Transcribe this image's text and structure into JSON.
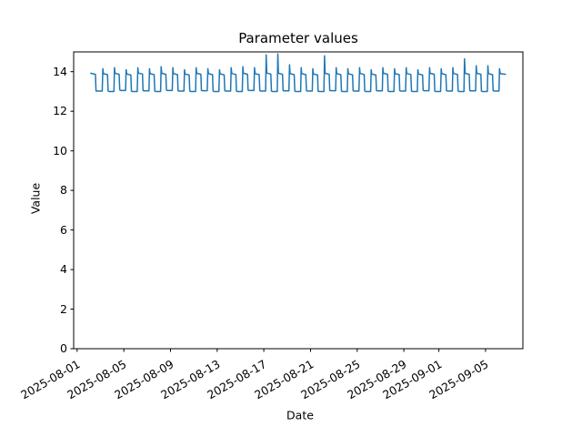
{
  "figure": {
    "background": "#ffffff",
    "text_color": "#000000"
  },
  "chart_data": {
    "type": "line",
    "title": "Parameter values",
    "xlabel": "Date",
    "ylabel": "Value",
    "ylim": [
      0,
      15
    ],
    "xlim_days": [
      -0.3,
      38.2
    ],
    "x_epoch": "2025-08-01",
    "grid": false,
    "legend": "none",
    "line_color": "#1f77b4",
    "line_width": 1.5,
    "y_ticks": [
      0,
      2,
      4,
      6,
      8,
      10,
      12,
      14
    ],
    "x_ticks": [
      {
        "label": "2025-08-01",
        "day": 0
      },
      {
        "label": "2025-08-05",
        "day": 4
      },
      {
        "label": "2025-08-09",
        "day": 8
      },
      {
        "label": "2025-08-13",
        "day": 12
      },
      {
        "label": "2025-08-17",
        "day": 16
      },
      {
        "label": "2025-08-21",
        "day": 20
      },
      {
        "label": "2025-08-25",
        "day": 24
      },
      {
        "label": "2025-08-29",
        "day": 28
      },
      {
        "label": "2025-09-01",
        "day": 31
      },
      {
        "label": "2025-09-05",
        "day": 35
      }
    ],
    "start_day": 1.17,
    "end_day": 36.7,
    "cycle": {
      "period_days": 1,
      "rise_frac": 0.2,
      "high_duration": 0.45,
      "low_duration": 0.55
    },
    "series": [
      {
        "name": "parameter",
        "description": "daily square wave: morning spike to peak, high plateau, drop to low plateau",
        "days": [
          {
            "date": "2025-08-02",
            "peak": 14.1,
            "high": 13.92,
            "low": 13.02
          },
          {
            "date": "2025-08-03",
            "peak": 14.15,
            "high": 13.9,
            "low": 13.0
          },
          {
            "date": "2025-08-04",
            "peak": 14.2,
            "high": 13.92,
            "low": 13.05
          },
          {
            "date": "2025-08-05",
            "peak": 14.1,
            "high": 13.88,
            "low": 13.0
          },
          {
            "date": "2025-08-06",
            "peak": 14.2,
            "high": 13.93,
            "low": 13.03
          },
          {
            "date": "2025-08-07",
            "peak": 14.15,
            "high": 13.9,
            "low": 13.0
          },
          {
            "date": "2025-08-08",
            "peak": 14.25,
            "high": 13.92,
            "low": 13.05
          },
          {
            "date": "2025-08-09",
            "peak": 14.2,
            "high": 13.9,
            "low": 13.02
          },
          {
            "date": "2025-08-10",
            "peak": 14.1,
            "high": 13.88,
            "low": 13.0
          },
          {
            "date": "2025-08-11",
            "peak": 14.2,
            "high": 13.92,
            "low": 13.04
          },
          {
            "date": "2025-08-12",
            "peak": 14.15,
            "high": 13.9,
            "low": 13.0
          },
          {
            "date": "2025-08-13",
            "peak": 14.1,
            "high": 13.89,
            "low": 13.02
          },
          {
            "date": "2025-08-14",
            "peak": 14.2,
            "high": 13.91,
            "low": 13.0
          },
          {
            "date": "2025-08-15",
            "peak": 14.25,
            "high": 13.92,
            "low": 13.05
          },
          {
            "date": "2025-08-16",
            "peak": 14.2,
            "high": 13.9,
            "low": 13.02
          },
          {
            "date": "2025-08-17",
            "peak": 14.85,
            "high": 13.93,
            "low": 13.0
          },
          {
            "date": "2025-08-18",
            "peak": 14.9,
            "high": 13.92,
            "low": 13.03
          },
          {
            "date": "2025-08-19",
            "peak": 14.35,
            "high": 13.9,
            "low": 13.0
          },
          {
            "date": "2025-08-20",
            "peak": 14.2,
            "high": 13.9,
            "low": 13.02
          },
          {
            "date": "2025-08-21",
            "peak": 14.15,
            "high": 13.88,
            "low": 13.0
          },
          {
            "date": "2025-08-22",
            "peak": 14.8,
            "high": 13.92,
            "low": 13.04
          },
          {
            "date": "2025-08-23",
            "peak": 14.2,
            "high": 13.9,
            "low": 13.0
          },
          {
            "date": "2025-08-24",
            "peak": 14.15,
            "high": 13.89,
            "low": 13.02
          },
          {
            "date": "2025-08-25",
            "peak": 14.2,
            "high": 13.91,
            "low": 13.0
          },
          {
            "date": "2025-08-26",
            "peak": 14.1,
            "high": 13.88,
            "low": 13.03
          },
          {
            "date": "2025-08-27",
            "peak": 14.2,
            "high": 13.92,
            "low": 13.0
          },
          {
            "date": "2025-08-28",
            "peak": 14.15,
            "high": 13.9,
            "low": 13.02
          },
          {
            "date": "2025-08-29",
            "peak": 14.2,
            "high": 13.91,
            "low": 13.0
          },
          {
            "date": "2025-08-30",
            "peak": 14.1,
            "high": 13.88,
            "low": 13.04
          },
          {
            "date": "2025-08-31",
            "peak": 14.2,
            "high": 13.92,
            "low": 13.0
          },
          {
            "date": "2025-09-01",
            "peak": 14.15,
            "high": 13.9,
            "low": 13.02
          },
          {
            "date": "2025-09-02",
            "peak": 14.2,
            "high": 13.91,
            "low": 13.0
          },
          {
            "date": "2025-09-03",
            "peak": 14.65,
            "high": 13.92,
            "low": 13.03
          },
          {
            "date": "2025-09-04",
            "peak": 14.3,
            "high": 13.92,
            "low": 13.0
          },
          {
            "date": "2025-09-05",
            "peak": 14.3,
            "high": 13.9,
            "low": 13.02
          },
          {
            "date": "2025-09-06",
            "peak": 14.15,
            "high": 13.9,
            "low": 13.0
          }
        ]
      }
    ]
  }
}
